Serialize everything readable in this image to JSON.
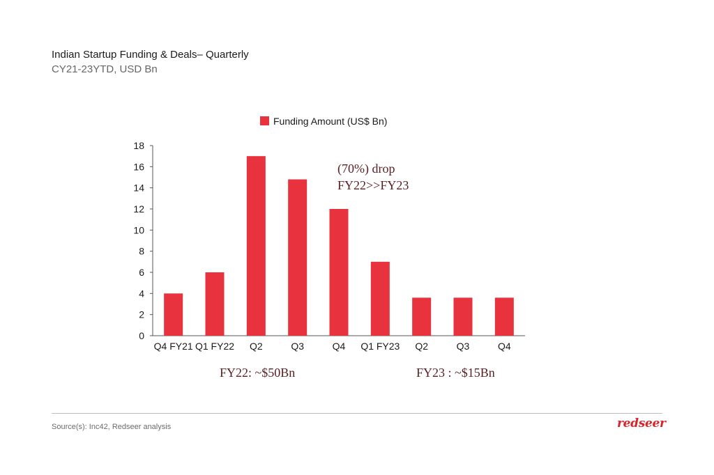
{
  "header": {
    "title": "Indian Startup Funding & Deals– Quarterly",
    "subtitle": "CY21-23YTD, USD Bn"
  },
  "chart_data": {
    "type": "bar",
    "categories": [
      "Q4 FY21",
      "Q1 FY22",
      "Q2",
      "Q3",
      "Q4",
      "Q1 FY23",
      "Q2",
      "Q3",
      "Q4"
    ],
    "series": [
      {
        "name": "Funding Amount (US$ Bn)",
        "values": [
          4,
          6,
          17,
          14.8,
          12,
          7,
          3.6,
          3.6,
          3.6
        ],
        "color": "#e8333f"
      }
    ],
    "ylim": [
      0,
      18
    ],
    "yticks": [
      0,
      2,
      4,
      6,
      8,
      10,
      12,
      14,
      16,
      18
    ],
    "legend": "top-center",
    "grid": false,
    "annotations": {
      "drop_line1": "(70%) drop",
      "drop_line2": "FY22>>FY23",
      "fy22_total": "FY22: ~$50Bn",
      "fy23_total": "FY23 : ~$15Bn"
    },
    "annotation_color": "#5a1e22"
  },
  "footer": {
    "source": "Source(s): Inc42, Redseer analysis",
    "logo_text": "redseer",
    "logo_color": "#d8232a"
  }
}
